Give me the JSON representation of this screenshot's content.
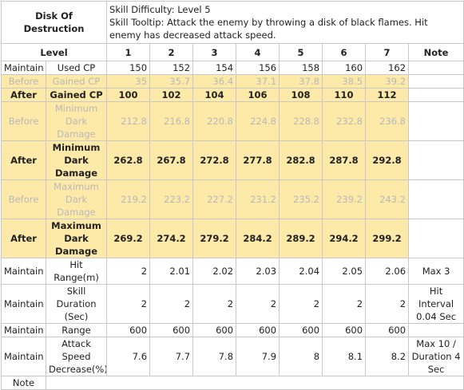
{
  "header": {
    "skill_name": "Disk Of Destruction",
    "difficulty": "Skill Difficulty: Level 5",
    "tooltip": "Skill Tooltip: Attack the enemy by throwing a disk of black flames. Hit enemy has decreased attack speed."
  },
  "table": {
    "level_label": "Level",
    "levels": [
      1,
      2,
      3,
      4,
      5,
      6,
      7
    ],
    "note_label": "Note",
    "rows": [
      {
        "kind": "plain",
        "state": "Maintain",
        "stat": "Used CP",
        "values": [
          150,
          152,
          154,
          156,
          158,
          160,
          162
        ]
      },
      {
        "kind": "dim",
        "state": "Before",
        "stat": "Gained CP",
        "values": [
          35,
          35.7,
          36.4,
          37.1,
          37.8,
          38.5,
          39.2
        ]
      },
      {
        "kind": "strong",
        "state": "After",
        "stat": "Gained CP",
        "values": [
          100,
          102,
          104,
          106,
          108,
          110,
          112
        ]
      },
      {
        "kind": "dim",
        "state": "Before",
        "stat": "Minimum Dark Damage",
        "values": [
          212.8,
          216.8,
          220.8,
          224.8,
          228.8,
          232.8,
          236.8
        ]
      },
      {
        "kind": "strong",
        "state": "After",
        "stat": "Minimum Dark Damage",
        "values": [
          262.8,
          267.8,
          272.8,
          277.8,
          282.8,
          287.8,
          292.8
        ]
      },
      {
        "kind": "dim",
        "state": "Before",
        "stat": "Maximum Dark Damage",
        "values": [
          219.2,
          223.2,
          227.2,
          231.2,
          235.2,
          239.2,
          243.2
        ]
      },
      {
        "kind": "strong",
        "state": "After",
        "stat": "Maximum Dark Damage",
        "values": [
          269.2,
          274.2,
          279.2,
          284.2,
          289.2,
          294.2,
          299.2
        ]
      },
      {
        "kind": "plain",
        "state": "Maintain",
        "stat": "Hit Range(m)",
        "values": [
          2,
          2.01,
          2.02,
          2.03,
          2.04,
          2.05,
          2.06
        ],
        "note": "Max 3"
      },
      {
        "kind": "plain",
        "state": "Maintain",
        "stat": "Skill Duration (Sec)",
        "values": [
          2,
          2,
          2,
          2,
          2,
          2,
          2
        ],
        "note": "Hit Interval 0.04 Sec"
      },
      {
        "kind": "plain",
        "state": "Maintain",
        "stat": "Range",
        "values": [
          600,
          600,
          600,
          600,
          600,
          600,
          600
        ]
      },
      {
        "kind": "plain",
        "state": "Maintain",
        "stat": "Attack Speed Decrease(%)",
        "values": [
          7.6,
          7.7,
          7.8,
          7.9,
          8,
          8.1,
          8.2
        ],
        "note": "Max 10 / Duration 4 Sec"
      }
    ],
    "footer": "Note"
  }
}
